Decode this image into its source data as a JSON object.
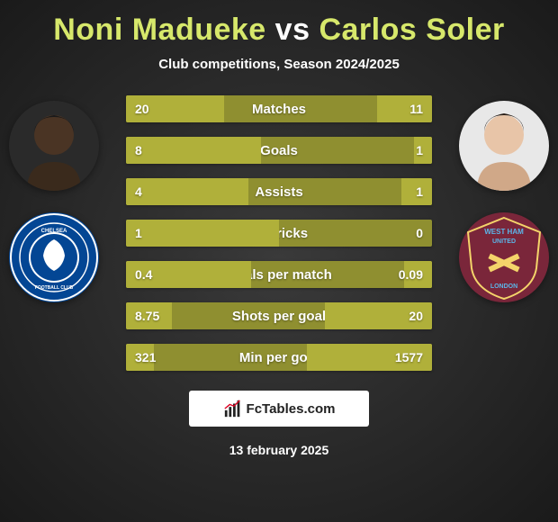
{
  "title": "Noni Madueke vs Carlos Soler",
  "subtitle": "Club competitions, Season 2024/2025",
  "date": "13 february 2025",
  "watermark_text": "FcTables.com",
  "colors": {
    "bar_base": "#8f8f30",
    "bar_fill": "#b0b03a",
    "text": "#ffffff",
    "player1_name_color": "#d7e86b",
    "player2_name_color": "#d7e86b"
  },
  "player_left": {
    "name": "Noni Madueke",
    "avatar_bg": "#2a2a2a",
    "skin_tone": "#4a3424",
    "club": {
      "name": "Chelsea",
      "badge_bg": "#034694",
      "badge_accent": "#ffffff"
    }
  },
  "player_right": {
    "name": "Carlos Soler",
    "avatar_bg": "#e8e8e8",
    "skin_tone": "#e8c5a8",
    "club": {
      "name": "West Ham United",
      "badge_bg": "#7a263a",
      "badge_accent": "#5bb5e8"
    }
  },
  "stats": [
    {
      "label": "Matches",
      "left_val": "20",
      "right_val": "11",
      "left_fill_pct": 32,
      "right_fill_pct": 18
    },
    {
      "label": "Goals",
      "left_val": "8",
      "right_val": "1",
      "left_fill_pct": 44,
      "right_fill_pct": 6
    },
    {
      "label": "Assists",
      "left_val": "4",
      "right_val": "1",
      "left_fill_pct": 40,
      "right_fill_pct": 10
    },
    {
      "label": "Hattricks",
      "left_val": "1",
      "right_val": "0",
      "left_fill_pct": 50,
      "right_fill_pct": 0
    },
    {
      "label": "Goals per match",
      "left_val": "0.4",
      "right_val": "0.09",
      "left_fill_pct": 41,
      "right_fill_pct": 9
    },
    {
      "label": "Shots per goal",
      "left_val": "8.75",
      "right_val": "20",
      "left_fill_pct": 15,
      "right_fill_pct": 35
    },
    {
      "label": "Min per goal",
      "left_val": "321",
      "right_val": "1577",
      "left_fill_pct": 9,
      "right_fill_pct": 41
    }
  ]
}
